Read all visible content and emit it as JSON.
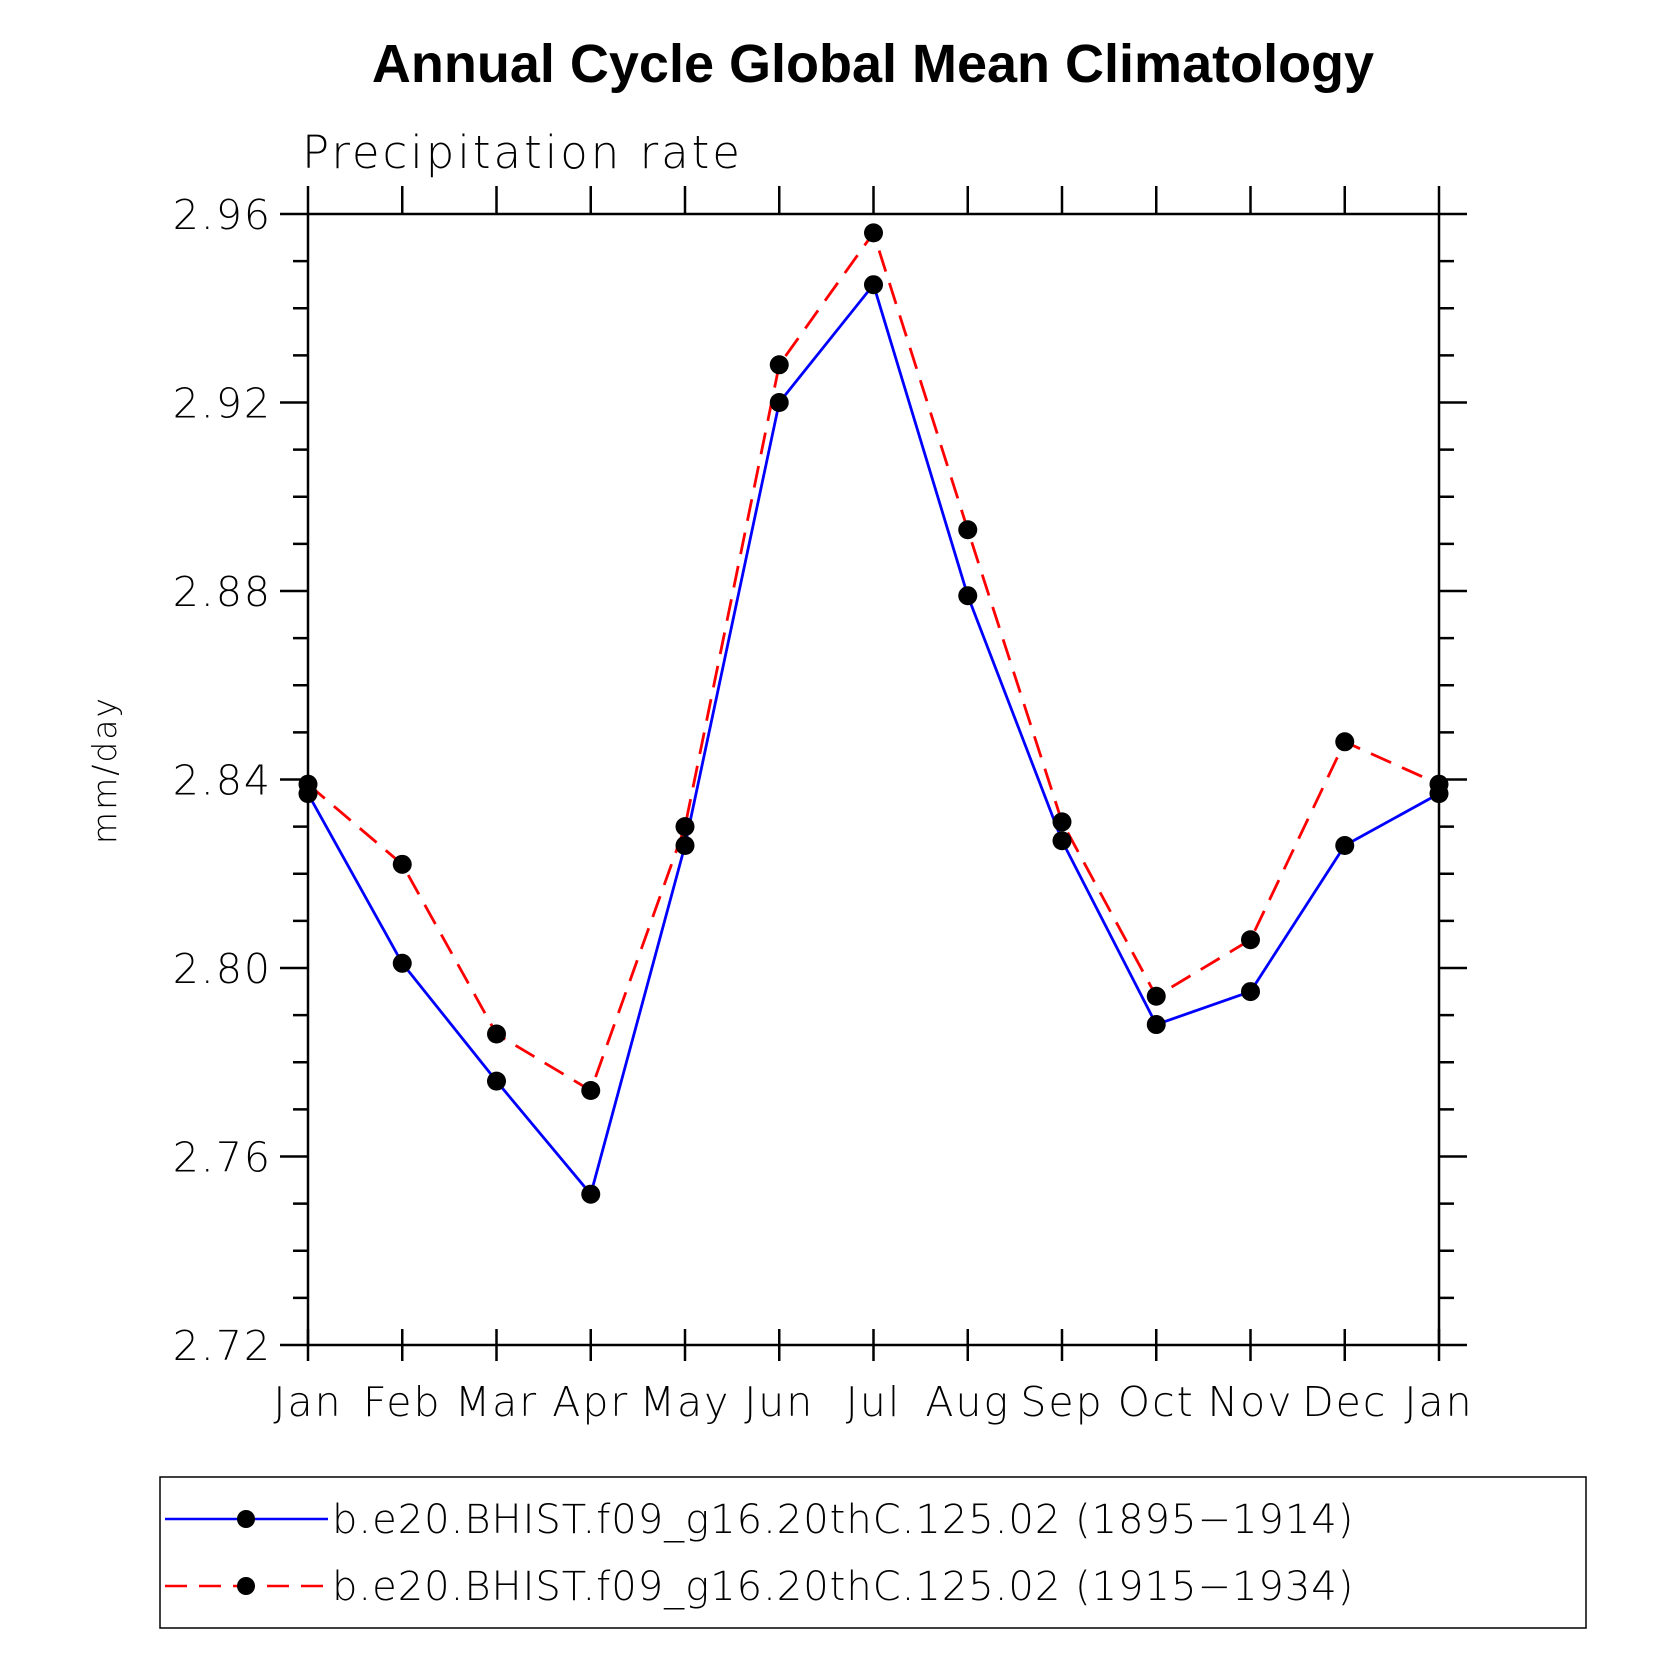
{
  "chart_data": {
    "type": "line",
    "title": "Annual Cycle Global Mean Climatology",
    "subtitle": "Precipitation rate",
    "xlabel": "",
    "ylabel": "mm/day",
    "categories": [
      "Jan",
      "Feb",
      "Mar",
      "Apr",
      "May",
      "Jun",
      "Jul",
      "Aug",
      "Sep",
      "Oct",
      "Nov",
      "Dec",
      "Jan"
    ],
    "ylim": [
      2.72,
      2.96
    ],
    "yticks": [
      "2.72",
      "2.76",
      "2.80",
      "2.84",
      "2.88",
      "2.92",
      "2.96"
    ],
    "y_minor_step": 0.01,
    "grid": false,
    "legend_position": "bottom",
    "series": [
      {
        "name": "b.e20.BHIST.f09_g16.20thC.125.02 (1895−1914)",
        "color": "#0000ff",
        "line_style": "solid",
        "marker": "filled-circle",
        "values": [
          2.837,
          2.801,
          2.776,
          2.752,
          2.826,
          2.92,
          2.945,
          2.879,
          2.827,
          2.788,
          2.795,
          2.826,
          2.837
        ]
      },
      {
        "name": "b.e20.BHIST.f09_g16.20thC.125.02 (1915−1934)",
        "color": "#ff0000",
        "line_style": "dashed",
        "marker": "filled-circle",
        "values": [
          2.839,
          2.822,
          2.786,
          2.774,
          2.83,
          2.928,
          2.956,
          2.893,
          2.831,
          2.794,
          2.806,
          2.848,
          2.839
        ]
      }
    ]
  }
}
